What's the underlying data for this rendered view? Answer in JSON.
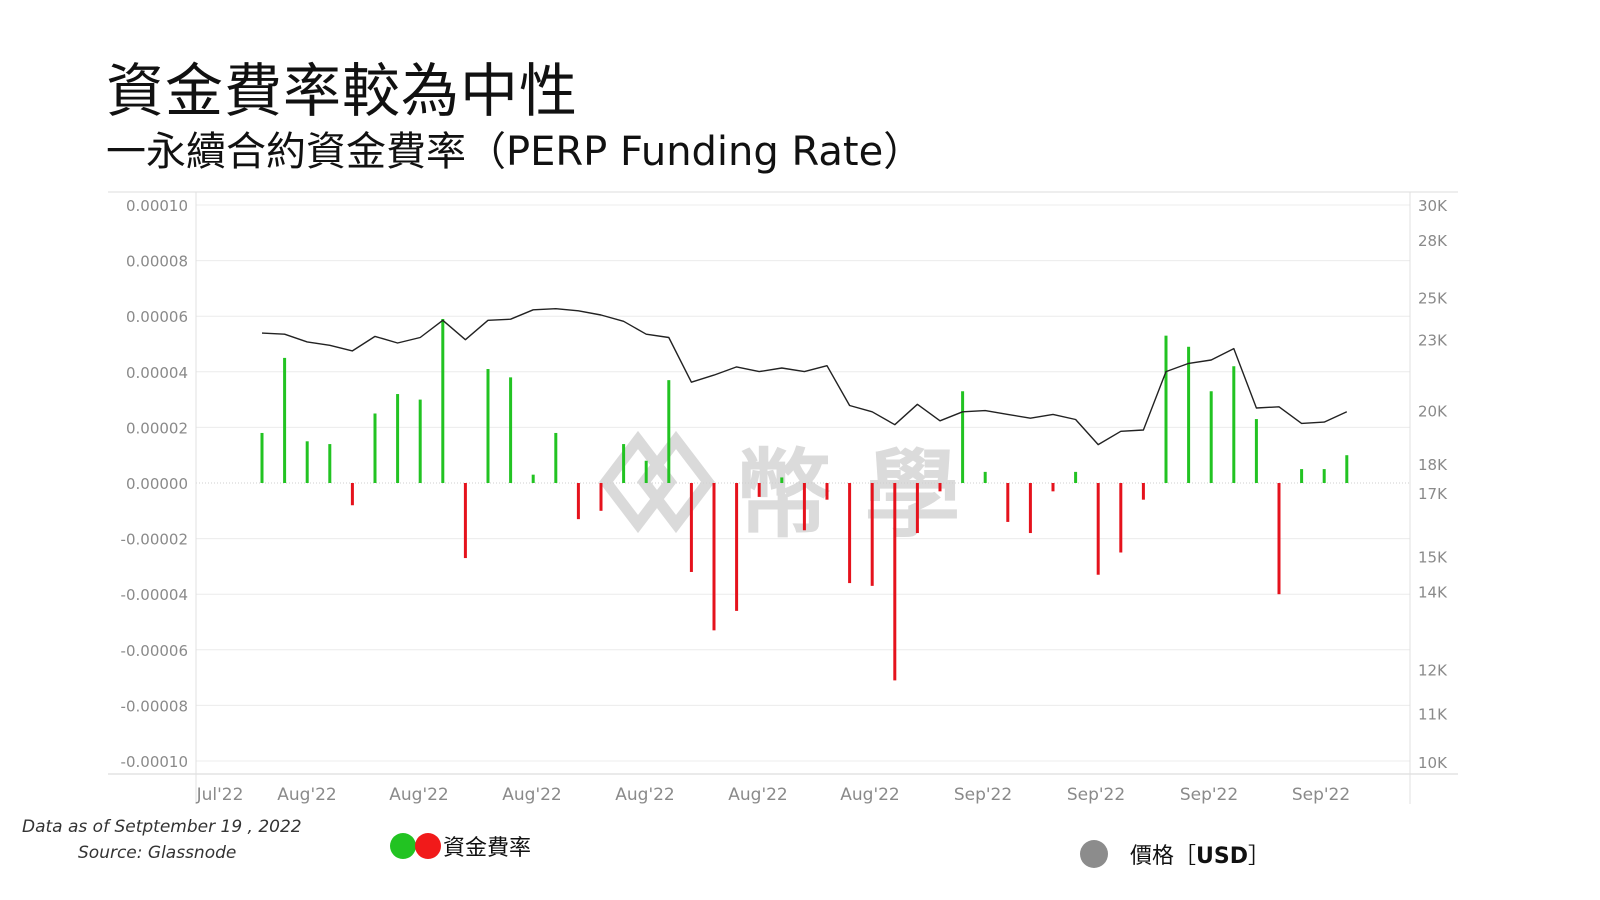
{
  "header": {
    "title": "資金費率較為中性",
    "subtitle": "一永續合約資金費率（PERP Funding Rate）"
  },
  "footer": {
    "data_as_of": "Data as of Setptember 19 , 2022",
    "source": "Source: Glassnode"
  },
  "legend": {
    "funding_label": "資金費率",
    "price_label": "價格［",
    "price_unit": "USD",
    "price_close": "］"
  },
  "watermark": "幣 學",
  "colors": {
    "positive": "#22c322",
    "negative": "#e5121c",
    "price_line": "#222222",
    "price_dot": "#8c8c8c",
    "grid": "#ececec"
  },
  "chart_data": {
    "type": "bar",
    "left_axis": {
      "ticks": [
        0.0001,
        8e-05,
        6e-05,
        4e-05,
        2e-05,
        0,
        -2e-05,
        -4e-05,
        -6e-05,
        -8e-05,
        -0.0001
      ],
      "tick_labels": [
        "0.00010",
        "0.00008",
        "0.00006",
        "0.00004",
        "0.00002",
        "0.00000",
        "-0.00002",
        "-0.00004",
        "-0.00006",
        "-0.00008",
        "-0.00010"
      ],
      "ylim": [
        -0.0001,
        0.0001
      ]
    },
    "right_axis": {
      "scale": "log",
      "ticks": [
        30000,
        28000,
        25000,
        23000,
        20000,
        18000,
        17000,
        15000,
        14000,
        12000,
        11000,
        10000
      ],
      "tick_labels": [
        "30K",
        "28K",
        "25K",
        "23K",
        "20K",
        "18K",
        "17K",
        "15K",
        "14K",
        "12K",
        "11K",
        "10K"
      ],
      "ylim": [
        10000,
        30000
      ]
    },
    "x_tick_labels": [
      "Jul'22",
      "Aug'22",
      "Aug'22",
      "Aug'22",
      "Aug'22",
      "Aug'22",
      "Aug'22",
      "Sep'22",
      "Sep'22",
      "Sep'22",
      "Sep'22"
    ],
    "series": [
      {
        "name": "資金費率",
        "values": [
          1.8e-05,
          4.5e-05,
          1.5e-05,
          1.4e-05,
          -8e-06,
          2.5e-05,
          3.2e-05,
          3e-05,
          5.9e-05,
          -2.7e-05,
          4.1e-05,
          3.8e-05,
          3e-06,
          1.8e-05,
          -1.3e-05,
          -1e-05,
          1.4e-05,
          8e-06,
          3.7e-05,
          -3.2e-05,
          -5.3e-05,
          -4.6e-05,
          -5e-06,
          2e-06,
          -1.7e-05,
          -6e-06,
          -3.6e-05,
          -3.7e-05,
          -7.1e-05,
          -1.8e-05,
          -3e-06,
          3.3e-05,
          4e-06,
          -1.4e-05,
          -1.8e-05,
          -3e-06,
          4e-06,
          -3.3e-05,
          -2.5e-05,
          -6e-06,
          5.3e-05,
          4.9e-05,
          3.3e-05,
          4.2e-05,
          2.3e-05,
          -4e-05,
          5e-06,
          5e-06,
          1e-05
        ]
      },
      {
        "name": "價格",
        "values": [
          23300,
          23250,
          22900,
          22750,
          22500,
          23150,
          22850,
          23100,
          23900,
          23000,
          23900,
          23950,
          24400,
          24450,
          24350,
          24150,
          23850,
          23250,
          23100,
          21150,
          21450,
          21800,
          21600,
          21750,
          21600,
          21850,
          20200,
          19950,
          19450,
          20250,
          19600,
          19950,
          20000,
          19850,
          19700,
          19850,
          19650,
          18700,
          19200,
          19250,
          21600,
          21950,
          22100,
          22600,
          20100,
          20150,
          19500,
          19550,
          19950
        ]
      }
    ]
  }
}
